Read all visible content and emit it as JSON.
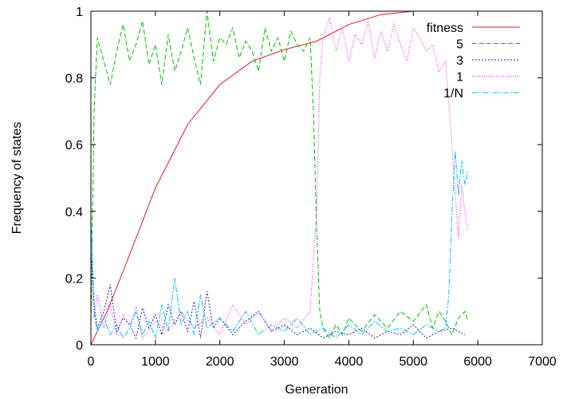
{
  "chart_data": {
    "type": "line",
    "title": "",
    "xlabel": "Generation",
    "ylabel": "Frequency of states",
    "xlim": [
      0,
      7000
    ],
    "ylim": [
      0,
      1
    ],
    "xticks": [
      0,
      1000,
      2000,
      3000,
      4000,
      5000,
      6000,
      7000
    ],
    "yticks": [
      0,
      0.2,
      0.4,
      0.6,
      0.8,
      1
    ],
    "xtick_labels": [
      "0",
      "1000",
      "2000",
      "3000",
      "4000",
      "5000",
      "6000",
      "7000"
    ],
    "ytick_labels": [
      "0",
      "0.2",
      "0.4",
      "0.6",
      "0.8",
      "1"
    ],
    "legend_position": "top-right",
    "grid": false,
    "series": [
      {
        "name": "fitness",
        "color": "#e41a1c",
        "dash": "solid",
        "x": [
          0,
          250,
          500,
          1000,
          1500,
          2000,
          2500,
          3000,
          3500,
          4000,
          4500,
          5000
        ],
        "y": [
          0,
          0.1,
          0.22,
          0.47,
          0.66,
          0.78,
          0.85,
          0.885,
          0.91,
          0.96,
          0.99,
          1.0
        ]
      },
      {
        "name": "5",
        "color": "#00c000",
        "dash": "6,3",
        "x": [
          0,
          50,
          100,
          200,
          300,
          400,
          500,
          600,
          700,
          800,
          900,
          1000,
          1100,
          1200,
          1300,
          1400,
          1500,
          1600,
          1700,
          1800,
          1900,
          2000,
          2100,
          2200,
          2300,
          2400,
          2500,
          2600,
          2700,
          2800,
          2900,
          3000,
          3100,
          3200,
          3300,
          3400,
          3450,
          3500,
          3550,
          3600,
          3700,
          3800,
          3900,
          4000,
          4200,
          4400,
          4600,
          4800,
          5000,
          5200,
          5300,
          5400,
          5500,
          5600,
          5700,
          5800,
          5850
        ],
        "y": [
          0.05,
          0.7,
          0.92,
          0.85,
          0.78,
          0.88,
          0.96,
          0.85,
          0.9,
          0.97,
          0.84,
          0.9,
          0.78,
          0.93,
          0.82,
          0.88,
          0.95,
          0.86,
          0.78,
          1.0,
          0.85,
          0.92,
          0.9,
          0.95,
          0.86,
          0.91,
          0.88,
          0.82,
          0.95,
          0.88,
          0.92,
          0.85,
          0.94,
          0.9,
          0.88,
          0.92,
          0.7,
          0.35,
          0.1,
          0.05,
          0.02,
          0.06,
          0.03,
          0.08,
          0.04,
          0.09,
          0.05,
          0.1,
          0.07,
          0.12,
          0.05,
          0.1,
          0.07,
          0.03,
          0.08,
          0.1,
          0.07
        ]
      },
      {
        "name": "3",
        "color": "#2020c0",
        "dash": "2,2",
        "x": [
          0,
          50,
          100,
          200,
          300,
          400,
          500,
          600,
          700,
          800,
          900,
          1000,
          1100,
          1200,
          1300,
          1400,
          1500,
          1600,
          1700,
          1800,
          1900,
          2000,
          2200,
          2400,
          2600,
          2800,
          3000,
          3200,
          3400,
          3600,
          3800,
          4000,
          4200,
          4400,
          4600,
          4800,
          5000,
          5200,
          5400,
          5600,
          5800
        ],
        "y": [
          0.28,
          0.12,
          0.05,
          0.1,
          0.18,
          0.04,
          0.08,
          0.06,
          0.02,
          0.11,
          0.05,
          0.09,
          0.03,
          0.12,
          0.06,
          0.1,
          0.04,
          0.13,
          0.02,
          0.16,
          0.05,
          0.08,
          0.03,
          0.07,
          0.1,
          0.04,
          0.06,
          0.03,
          0.05,
          0.02,
          0.04,
          0.03,
          0.05,
          0.02,
          0.04,
          0.03,
          0.06,
          0.02,
          0.04,
          0.05,
          0.03
        ]
      },
      {
        "name": "1",
        "color": "#ff00ff",
        "dash": "1,2",
        "x": [
          0,
          50,
          100,
          200,
          300,
          400,
          500,
          600,
          700,
          800,
          1000,
          1200,
          1400,
          1600,
          1800,
          2000,
          2200,
          2400,
          2600,
          2800,
          3000,
          3200,
          3400,
          3500,
          3550,
          3600,
          3700,
          3800,
          3900,
          4000,
          4100,
          4200,
          4300,
          4400,
          4500,
          4600,
          4700,
          4800,
          4900,
          5000,
          5100,
          5200,
          5300,
          5400,
          5500,
          5550,
          5600,
          5650,
          5700,
          5750,
          5800,
          5850
        ],
        "y": [
          0.2,
          0.08,
          0.15,
          0.05,
          0.12,
          0.03,
          0.09,
          0.06,
          0.11,
          0.02,
          0.07,
          0.04,
          0.1,
          0.05,
          0.08,
          0.03,
          0.12,
          0.06,
          0.1,
          0.04,
          0.08,
          0.05,
          0.1,
          0.4,
          0.8,
          0.92,
          0.98,
          0.88,
          0.95,
          0.85,
          0.93,
          0.9,
          0.97,
          0.86,
          0.94,
          0.88,
          0.96,
          0.9,
          0.85,
          0.95,
          0.92,
          0.88,
          0.9,
          0.82,
          0.85,
          0.72,
          0.6,
          0.45,
          0.32,
          0.48,
          0.4,
          0.34
        ]
      },
      {
        "name": "1/N",
        "color": "#00c0ff",
        "dash": "7,2,2,2",
        "x": [
          0,
          30,
          60,
          100,
          200,
          300,
          400,
          500,
          600,
          700,
          800,
          900,
          1000,
          1100,
          1200,
          1300,
          1400,
          1500,
          1600,
          1700,
          1800,
          2000,
          2200,
          2400,
          2600,
          2800,
          3000,
          3200,
          3400,
          3600,
          3800,
          4000,
          4200,
          4400,
          4600,
          4800,
          5000,
          5200,
          5400,
          5500,
          5550,
          5600,
          5650,
          5700,
          5750,
          5800,
          5850
        ],
        "y": [
          0.38,
          0.22,
          0.08,
          0.04,
          0.08,
          0.03,
          0.06,
          0.02,
          0.05,
          0.1,
          0.03,
          0.07,
          0.02,
          0.12,
          0.04,
          0.2,
          0.06,
          0.1,
          0.03,
          0.15,
          0.05,
          0.08,
          0.04,
          0.1,
          0.03,
          0.06,
          0.04,
          0.08,
          0.03,
          0.05,
          0.02,
          0.06,
          0.03,
          0.07,
          0.04,
          0.05,
          0.03,
          0.06,
          0.04,
          0.05,
          0.15,
          0.4,
          0.58,
          0.45,
          0.55,
          0.48,
          0.52
        ]
      }
    ]
  }
}
